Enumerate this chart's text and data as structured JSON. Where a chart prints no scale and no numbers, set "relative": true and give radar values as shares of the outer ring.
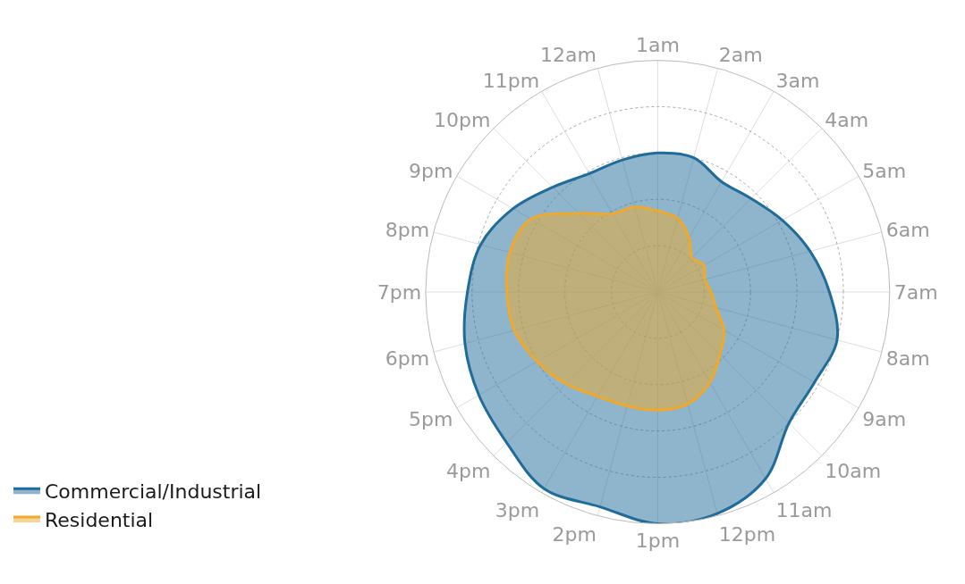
{
  "chart_data": {
    "type": "radar",
    "relative": true,
    "grid": true,
    "legend": "bottom left",
    "marker": "none",
    "line_style": "solid",
    "categories": [
      "1am",
      "2am",
      "3am",
      "4am",
      "5am",
      "6am",
      "7am",
      "8am",
      "9am",
      "10am",
      "11am",
      "12pm",
      "1pm",
      "2pm",
      "3pm",
      "4pm",
      "5pm",
      "6pm",
      "7pm",
      "8pm",
      "9pm",
      "10pm",
      "11pm",
      "12am"
    ],
    "series": [
      {
        "name": "Commercial/Industrial",
        "color": "#1f6b9a",
        "values": [
          0.6,
          0.6,
          0.55,
          0.57,
          0.62,
          0.68,
          0.74,
          0.8,
          0.78,
          0.8,
          0.93,
          0.99,
          1.0,
          0.96,
          0.98,
          0.92,
          0.89,
          0.86,
          0.82,
          0.79,
          0.72,
          0.64,
          0.59,
          0.59
        ]
      },
      {
        "name": "Residential",
        "color": "#f0a92a",
        "values": [
          0.35,
          0.33,
          0.27,
          0.21,
          0.23,
          0.21,
          0.23,
          0.26,
          0.33,
          0.38,
          0.45,
          0.5,
          0.51,
          0.51,
          0.52,
          0.56,
          0.6,
          0.64,
          0.65,
          0.66,
          0.63,
          0.48,
          0.39,
          0.38
        ]
      }
    ]
  }
}
